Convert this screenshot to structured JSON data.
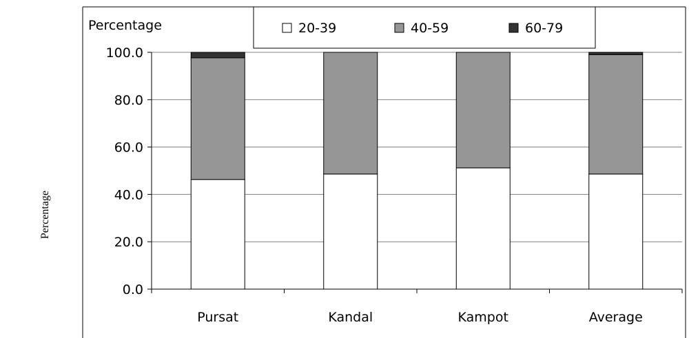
{
  "chart_data": {
    "type": "bar",
    "stacked": true,
    "ylabel": "Percentage",
    "inner_label": "Percentage",
    "categories": [
      "Pursat",
      "Kandal",
      "Kampot",
      "Average"
    ],
    "series": [
      {
        "name": "20-39",
        "values": [
          46.3,
          48.6,
          51.2,
          48.6
        ],
        "color": "#ffffff"
      },
      {
        "name": "40-59",
        "values": [
          51.4,
          51.4,
          48.8,
          50.4
        ],
        "color": "#969696"
      },
      {
        "name": "60-79",
        "values": [
          2.3,
          0.0,
          0.0,
          1.0
        ],
        "color": "#333333"
      }
    ],
    "ylim": [
      0,
      100
    ],
    "yticks": [
      "0.0",
      "20.0",
      "40.0",
      "60.0",
      "80.0",
      "100.0"
    ],
    "ytick_values": [
      0,
      20,
      40,
      60,
      80,
      100
    ],
    "grid": true,
    "legend_position": "top"
  }
}
